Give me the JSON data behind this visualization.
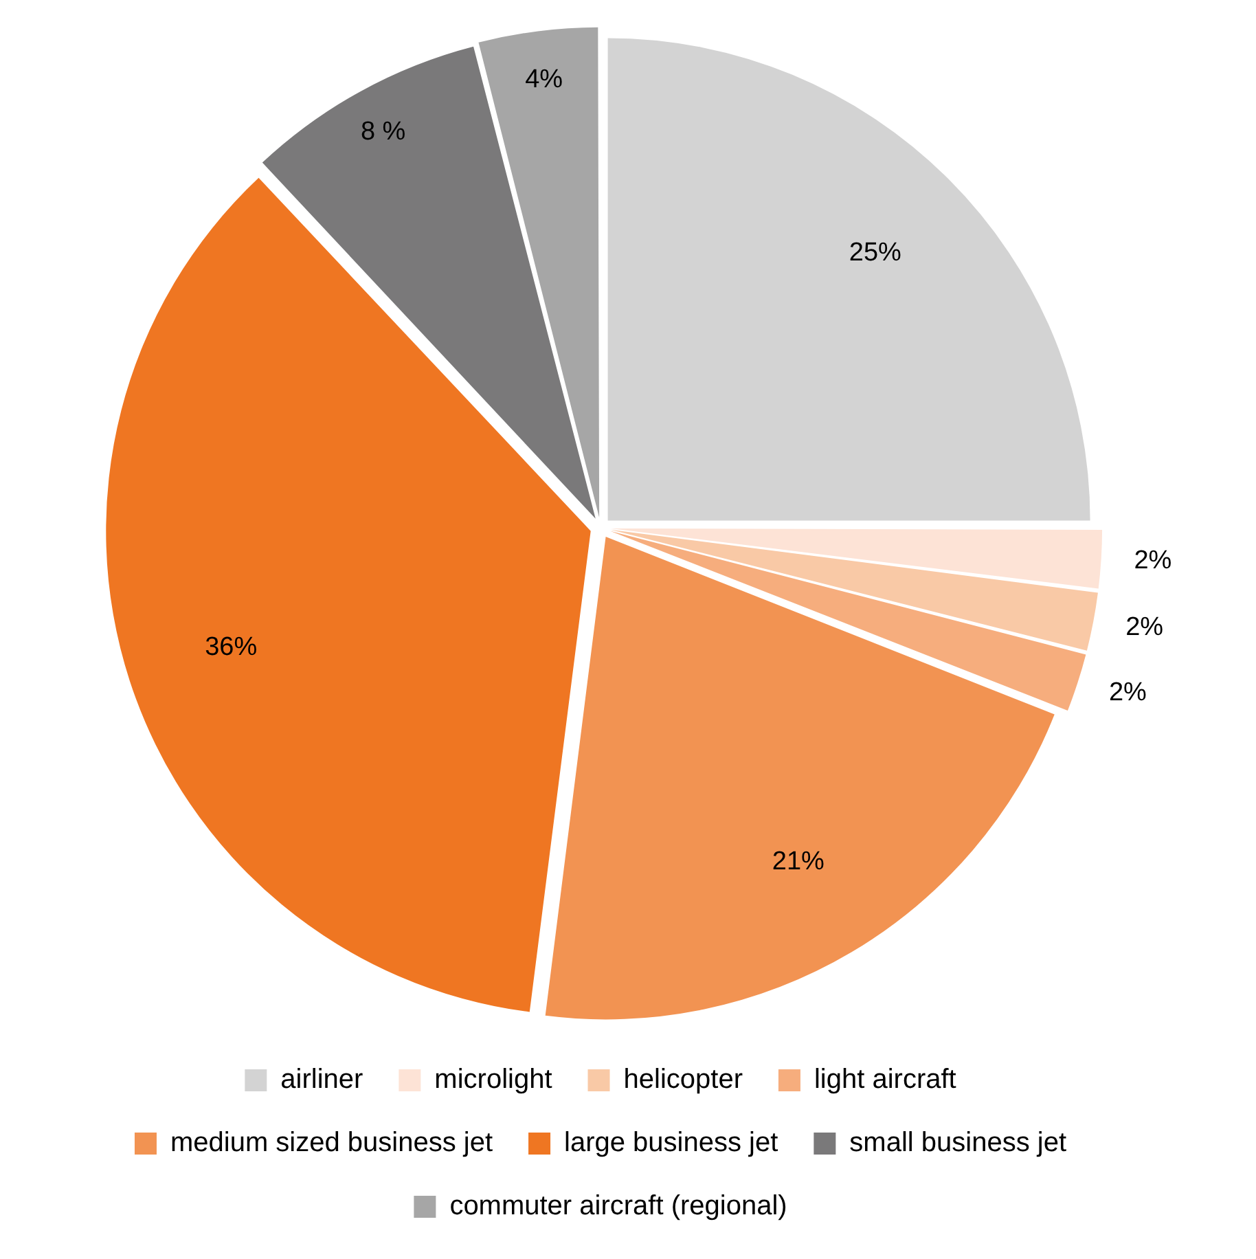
{
  "chart_data": {
    "type": "pie",
    "categories": [
      "airliner",
      "microlight",
      "helicopter",
      "light aircraft",
      "medium sized business jet",
      "large business jet",
      "small business jet",
      "commuter aircraft (regional)"
    ],
    "values": [
      25,
      2,
      2,
      2,
      21,
      36,
      8,
      4
    ],
    "value_labels": [
      "25%",
      "2%",
      "2%",
      "2%",
      "21%",
      "36%",
      "8 %",
      "4%"
    ],
    "colors": [
      "#d3d3d3",
      "#fde3d6",
      "#f9c9a6",
      "#f6ad7d",
      "#f29352",
      "#ef7622",
      "#7a797a",
      "#a6a6a6"
    ],
    "legend": "bottom"
  }
}
